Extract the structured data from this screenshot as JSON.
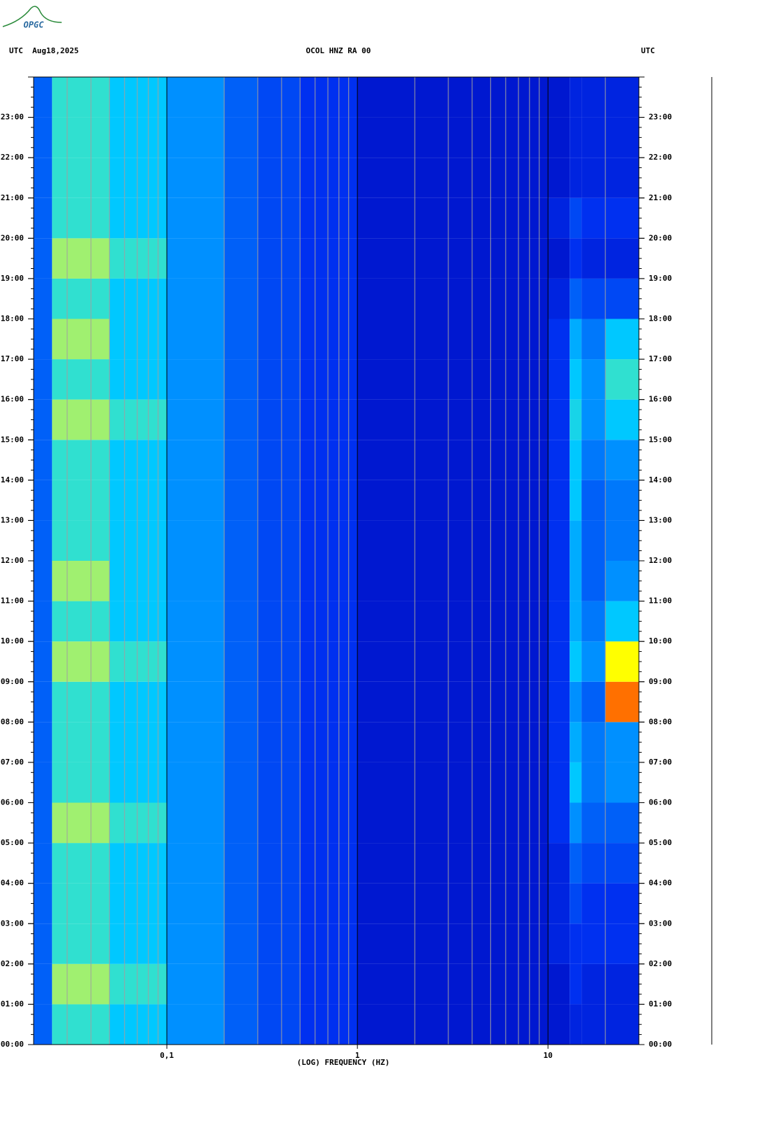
{
  "logo": "OPGC",
  "chart_data": {
    "type": "spectrogram",
    "title": "OCOL HNZ RA 00",
    "left_header": "UTC  Aug18,2025",
    "right_header": "UTC",
    "x_label": "(LOG) FREQUENCY (HZ)",
    "x_log": true,
    "xlim": [
      0.02,
      30
    ],
    "xticks": [
      {
        "value": 0.1,
        "label": "0,1"
      },
      1,
      10
    ],
    "xminorticks": [
      0.03,
      0.04,
      0.05,
      0.06,
      0.07,
      0.08,
      0.09,
      0.2,
      0.3,
      0.4,
      0.5,
      0.6,
      0.7,
      0.8,
      0.9,
      2,
      3,
      4,
      5,
      6,
      7,
      8,
      9,
      20
    ],
    "ylim": [
      0,
      24
    ],
    "yticks": [
      {
        "value": 0,
        "label": "00:00"
      },
      {
        "value": 1,
        "label": "01:00"
      },
      {
        "value": 2,
        "label": "02:00"
      },
      {
        "value": 3,
        "label": "03:00"
      },
      {
        "value": 4,
        "label": "04:00"
      },
      {
        "value": 5,
        "label": "05:00"
      },
      {
        "value": 6,
        "label": "06:00"
      },
      {
        "value": 7,
        "label": "07:00"
      },
      {
        "value": 8,
        "label": "08:00"
      },
      {
        "value": 9,
        "label": "09:00"
      },
      {
        "value": 10,
        "label": "10:00"
      },
      {
        "value": 11,
        "label": "11:00"
      },
      {
        "value": 12,
        "label": "12:00"
      },
      {
        "value": 13,
        "label": "13:00"
      },
      {
        "value": 14,
        "label": "14:00"
      },
      {
        "value": 15,
        "label": "15:00"
      },
      {
        "value": 16,
        "label": "16:00"
      },
      {
        "value": 17,
        "label": "17:00"
      },
      {
        "value": 18,
        "label": "18:00"
      },
      {
        "value": 19,
        "label": "19:00"
      },
      {
        "value": 20,
        "label": "20:00"
      },
      {
        "value": 21,
        "label": "21:00"
      },
      {
        "value": 22,
        "label": "22:00"
      },
      {
        "value": 23,
        "label": "23:00"
      }
    ],
    "freq_bins": [
      0.02,
      0.025,
      0.05,
      0.1,
      0.2,
      0.3,
      0.5,
      1,
      3,
      10,
      13,
      15,
      20,
      30
    ],
    "time_bins": [
      0,
      1,
      2,
      3,
      4,
      5,
      6,
      7,
      8,
      9,
      10,
      11,
      12,
      13,
      14,
      15,
      16,
      17,
      18,
      19,
      20,
      21,
      22,
      23,
      24
    ],
    "colorscale": [
      [
        0,
        "#0000b0"
      ],
      [
        2,
        "#0030f0"
      ],
      [
        4,
        "#0090ff"
      ],
      [
        5,
        "#00c8ff"
      ],
      [
        6,
        "#30e0d0"
      ],
      [
        7,
        "#a0f070"
      ],
      [
        8,
        "#ffff00"
      ],
      [
        9,
        "#ff7000"
      ],
      [
        10,
        "#c00000"
      ]
    ],
    "intensity": [
      [
        3,
        6,
        5,
        4,
        3,
        2.5,
        2,
        1,
        1,
        1,
        1.5,
        1.5,
        1.5
      ],
      [
        3,
        7,
        6,
        4,
        3,
        2.5,
        2,
        1,
        1,
        1,
        2,
        1.5,
        1.5
      ],
      [
        3,
        6,
        5,
        4,
        3,
        2.5,
        2,
        1,
        1,
        1.5,
        2,
        2,
        2
      ],
      [
        3,
        6,
        5,
        4,
        3,
        2.5,
        2,
        1,
        1,
        1.5,
        2.5,
        2,
        2
      ],
      [
        3,
        6,
        5,
        4,
        3,
        2.5,
        2,
        1,
        1,
        1.5,
        3,
        2.5,
        2.5
      ],
      [
        3,
        7,
        6,
        4,
        3,
        2.5,
        2,
        1,
        1,
        2,
        4,
        3,
        3
      ],
      [
        3,
        6,
        5,
        4,
        3,
        2.5,
        2,
        1,
        1,
        2,
        5,
        3.5,
        4
      ],
      [
        3,
        6,
        5,
        4,
        3,
        2.5,
        2,
        1,
        1,
        2,
        4.5,
        3.5,
        4
      ],
      [
        3,
        6,
        5,
        4,
        3,
        2.5,
        2,
        1,
        1,
        2,
        4,
        3,
        9
      ],
      [
        3,
        7,
        6,
        4,
        3,
        2.5,
        2,
        1,
        1,
        2,
        5,
        4,
        8
      ],
      [
        3,
        6,
        5,
        4,
        3,
        2.5,
        2,
        1,
        1,
        2,
        4.5,
        3.5,
        5
      ],
      [
        3,
        7,
        5,
        4,
        3,
        2.5,
        2,
        1,
        1,
        2,
        4.5,
        3,
        4
      ],
      [
        3,
        6,
        5,
        4,
        3,
        2.5,
        2,
        1,
        1,
        2,
        4.5,
        3,
        3.5
      ],
      [
        3,
        6,
        5,
        4,
        3,
        2.5,
        2,
        1,
        1,
        2,
        5,
        3,
        3.5
      ],
      [
        3,
        6,
        5,
        4,
        3,
        2.5,
        2,
        1,
        1,
        2,
        5,
        3.5,
        4
      ],
      [
        3,
        7,
        6,
        4,
        3,
        2.5,
        2,
        1,
        1,
        2,
        5.5,
        4,
        5
      ],
      [
        3,
        6,
        5,
        4,
        3,
        2.5,
        2,
        1,
        1,
        2,
        5,
        4,
        6
      ],
      [
        3,
        7,
        5,
        4,
        3,
        2.5,
        2,
        1,
        1,
        2,
        4.5,
        3.5,
        5
      ],
      [
        3,
        6,
        5,
        4,
        3,
        2.5,
        2,
        1,
        1,
        1.5,
        3,
        2.5,
        2.5
      ],
      [
        3,
        7,
        6,
        4,
        3,
        2.5,
        2,
        1,
        1,
        1,
        2,
        1.5,
        1.5
      ],
      [
        3,
        6,
        5,
        4,
        3,
        2.5,
        2,
        1,
        1,
        1.5,
        2.5,
        2,
        2
      ],
      [
        3,
        6,
        5,
        4,
        3,
        2.5,
        2,
        1,
        1,
        1,
        1.5,
        1.5,
        1.5
      ],
      [
        3,
        6,
        5,
        4,
        3,
        2.5,
        2,
        1,
        1,
        1,
        1.5,
        1.5,
        1.5
      ],
      [
        3,
        6,
        5,
        4,
        3,
        2.5,
        2,
        1,
        1,
        1,
        1.5,
        1.5,
        1.5
      ]
    ]
  }
}
